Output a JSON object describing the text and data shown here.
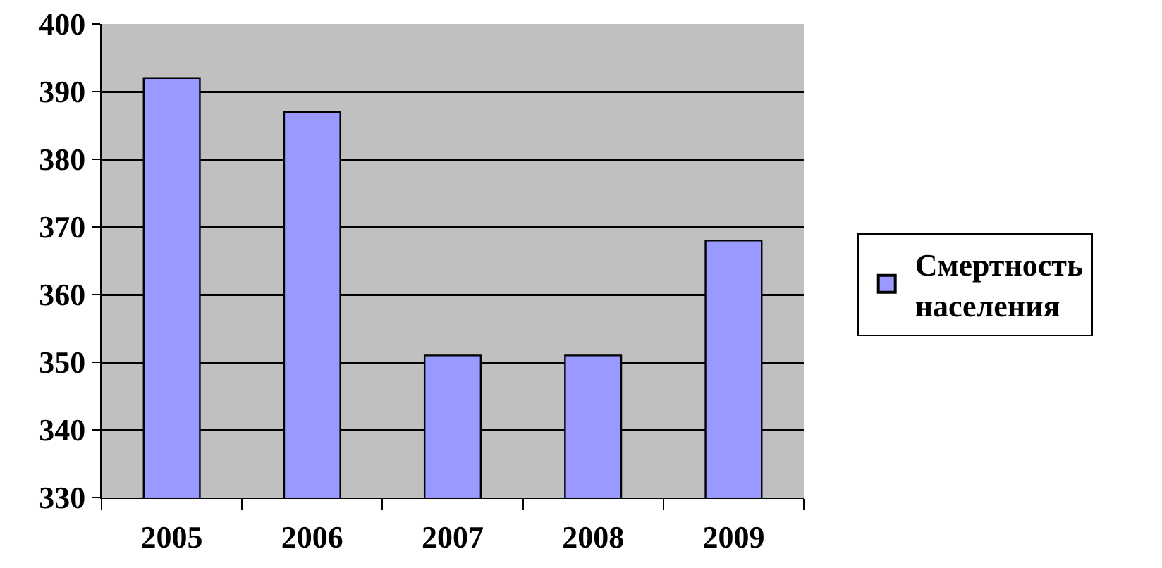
{
  "chart_data": {
    "type": "bar",
    "categories": [
      "2005",
      "2006",
      "2007",
      "2008",
      "2009"
    ],
    "series": [
      {
        "name": "Смертность населения",
        "color": "#9999ff",
        "values": [
          392,
          387,
          351,
          351,
          368
        ]
      }
    ],
    "ylim": [
      330,
      400
    ],
    "yticks": [
      330,
      340,
      350,
      360,
      370,
      380,
      390,
      400
    ],
    "grid": "y",
    "legend": "right"
  }
}
